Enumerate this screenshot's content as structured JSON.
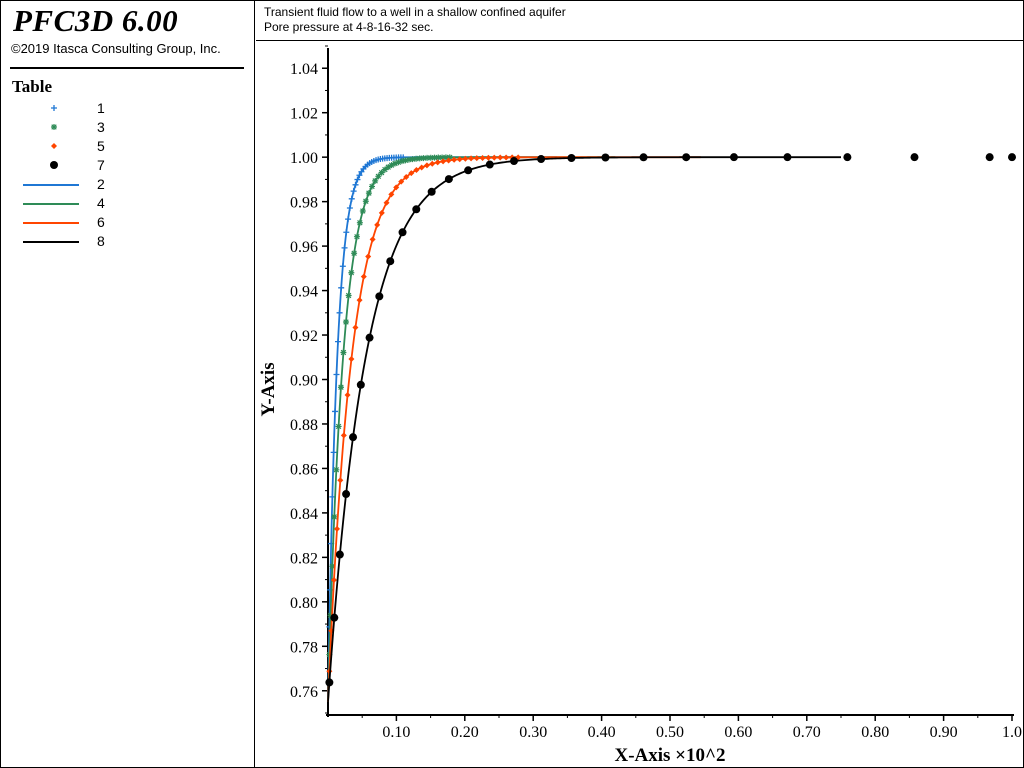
{
  "app": {
    "title": "PFC3D 6.00",
    "copyright": "©2019 Itasca Consulting Group, Inc."
  },
  "header": {
    "line1": "Transient fluid flow to a well in a shallow confined aquifer",
    "line2": "Pore pressure at 4-8-16-32 sec."
  },
  "legend": {
    "title": "Table",
    "items": [
      {
        "label": "1",
        "kind": "marker",
        "marker": "plus",
        "color": "#1f77d4"
      },
      {
        "label": "3",
        "kind": "marker",
        "marker": "star",
        "color": "#2e8b57"
      },
      {
        "label": "5",
        "kind": "marker",
        "marker": "diamond",
        "color": "#ff4500"
      },
      {
        "label": "7",
        "kind": "marker",
        "marker": "circle",
        "color": "#000000"
      },
      {
        "label": "2",
        "kind": "line",
        "color": "#1f77d4"
      },
      {
        "label": "4",
        "kind": "line",
        "color": "#2e8b57"
      },
      {
        "label": "6",
        "kind": "line",
        "color": "#ff4500"
      },
      {
        "label": "8",
        "kind": "line",
        "color": "#000000"
      }
    ]
  },
  "chart_data": {
    "type": "line",
    "xlabel": "X-Axis ×10^2",
    "ylabel": "Y-Axis",
    "xlim": [
      0.0,
      1.0
    ],
    "ylim": [
      0.75,
      1.05
    ],
    "x_ticks": [
      "0.10",
      "0.20",
      "0.30",
      "0.40",
      "0.50",
      "0.60",
      "0.70",
      "0.80",
      "0.90",
      "1.0"
    ],
    "y_ticks": [
      "0.76",
      "0.78",
      "0.80",
      "0.82",
      "0.84",
      "0.86",
      "0.88",
      "0.90",
      "0.92",
      "0.94",
      "0.96",
      "0.98",
      "1.00",
      "1.02",
      "1.04"
    ],
    "grid": false,
    "legend_position": "left-panel",
    "series": [
      {
        "name": "1",
        "color": "#1f77d4",
        "style": "marker",
        "marker": "plus",
        "t": 0.0135,
        "count": 40
      },
      {
        "name": "2",
        "color": "#1f77d4",
        "style": "line",
        "t": 0.0135
      },
      {
        "name": "3",
        "color": "#2e8b57",
        "style": "marker",
        "marker": "star",
        "t": 0.022,
        "count": 40
      },
      {
        "name": "4",
        "color": "#2e8b57",
        "style": "line",
        "t": 0.022
      },
      {
        "name": "5",
        "color": "#ff4500",
        "style": "marker",
        "marker": "diamond",
        "t": 0.0345,
        "count": 40
      },
      {
        "name": "6",
        "color": "#ff4500",
        "style": "line",
        "t": 0.0345
      },
      {
        "name": "7",
        "color": "#000000",
        "style": "marker",
        "marker": "circle",
        "t": 0.055,
        "count": 40
      },
      {
        "name": "8",
        "color": "#000000",
        "style": "line",
        "t": 0.055
      }
    ]
  }
}
